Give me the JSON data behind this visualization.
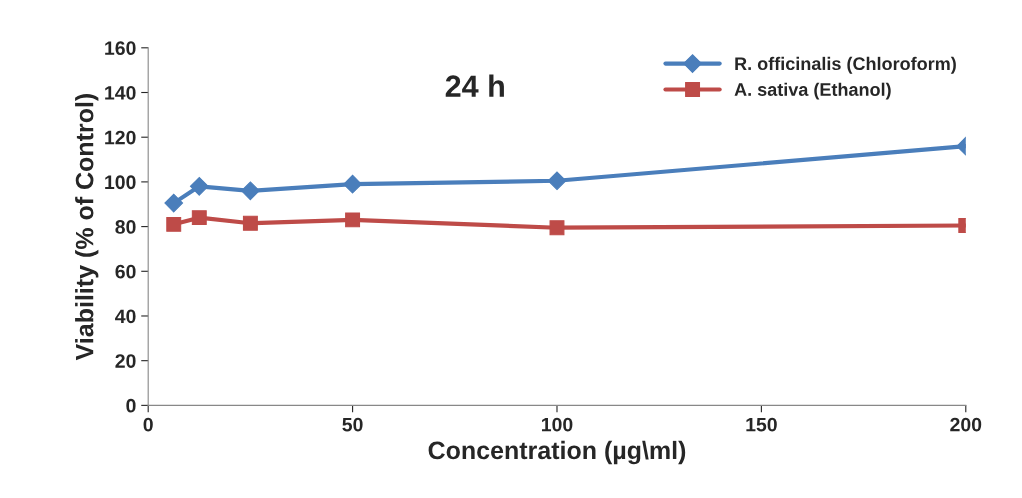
{
  "chart_data": {
    "type": "line",
    "title": "24 h",
    "xlabel": "Concentration (µg\\ml)",
    "ylabel": "Viability (% of Control)",
    "x": [
      6.25,
      12.5,
      25,
      50,
      100,
      200
    ],
    "series": [
      {
        "name": "R. officinalis (Chloroform)",
        "color": "#4a7ebb",
        "marker": "diamond",
        "values": [
          90.5,
          98,
          96,
          99,
          100.5,
          116
        ]
      },
      {
        "name": "A. sativa (Ethanol)",
        "color": "#be4b48",
        "marker": "square",
        "values": [
          81,
          84,
          81.5,
          83,
          79.5,
          80.5
        ]
      }
    ],
    "xlim": [
      0,
      200
    ],
    "xticks": [
      0,
      50,
      100,
      150,
      200
    ],
    "ylim": [
      0,
      160
    ],
    "yticks": [
      0,
      20,
      40,
      60,
      80,
      100,
      120,
      140,
      160
    ],
    "grid": false,
    "legend": "top right",
    "line_style": "solid"
  }
}
